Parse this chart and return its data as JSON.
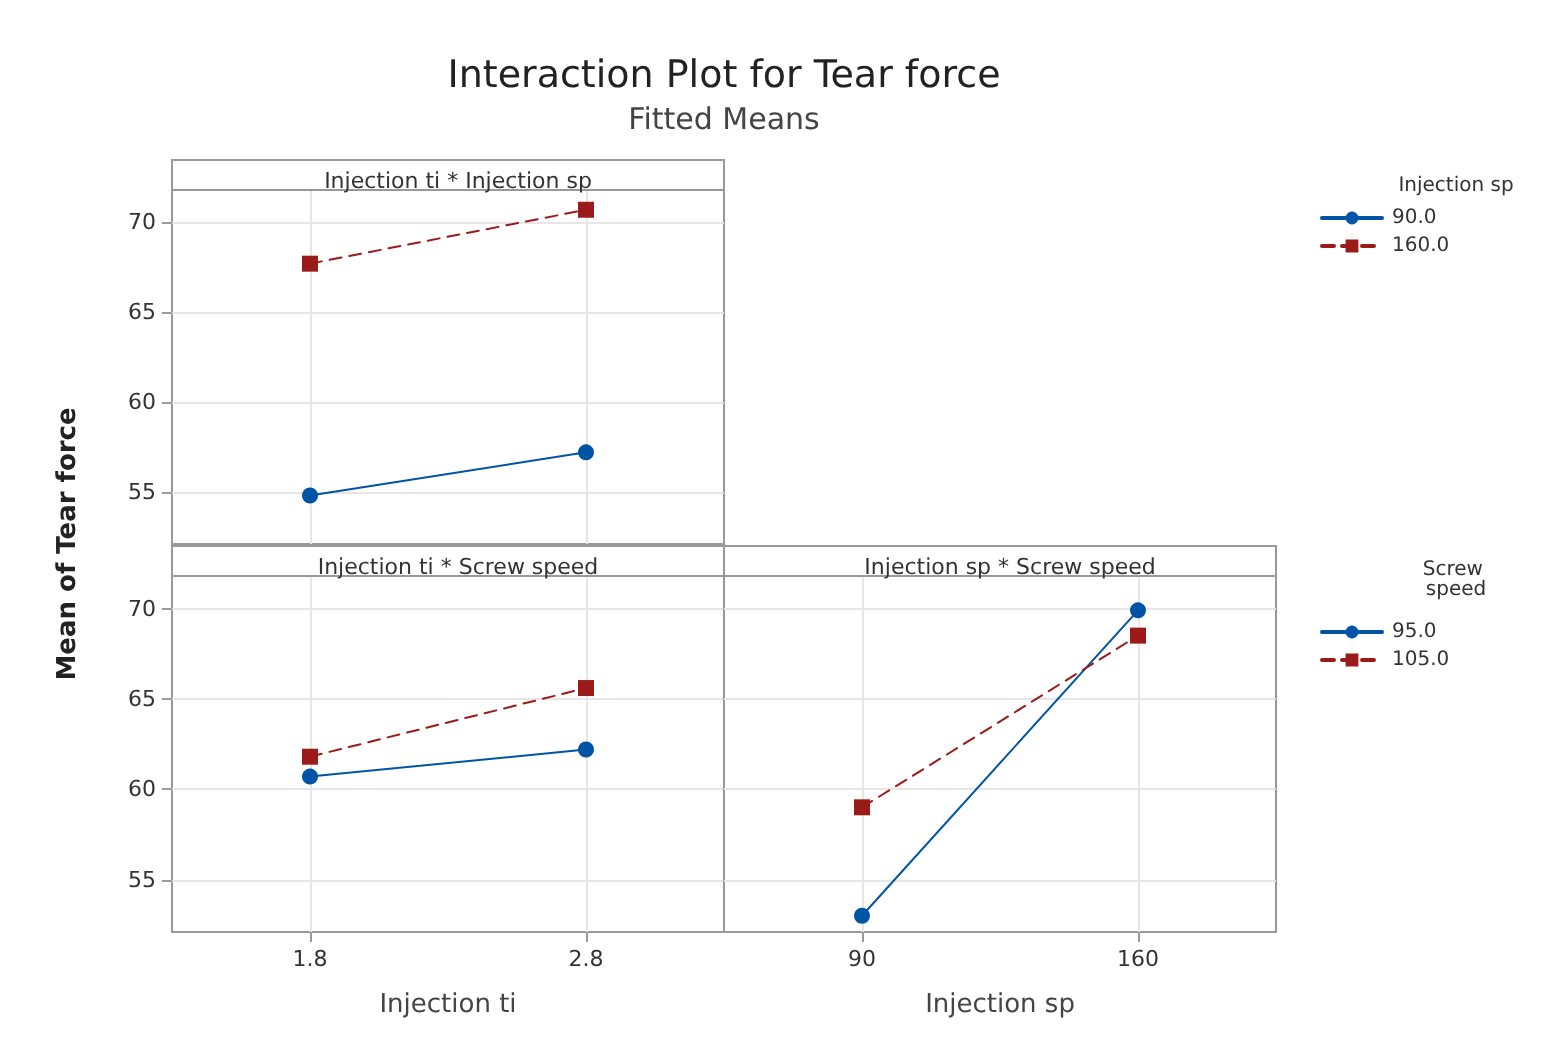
{
  "chart_data": [
    {
      "type": "line",
      "title": "Injection ti * Injection sp",
      "annotations": [
        "Interaction Plot for Tear force",
        "Fitted Means"
      ],
      "ylabel": "Mean of Tear force",
      "legend_title": "Injection sp",
      "legend": "right",
      "grid": true,
      "tick_labels": "y",
      "xlim": [
        1.3,
        3.3
      ],
      "xticks": [
        1.8,
        2.8
      ],
      "ylim": [
        52.1,
        71.8
      ],
      "yticks": [
        55,
        60,
        65,
        70
      ],
      "x": [
        1.8,
        2.8
      ],
      "series": [
        {
          "name": "90.0",
          "color": "#0054a6",
          "marker": "circle",
          "line_style": "solid",
          "values": [
            54.8,
            57.2
          ]
        },
        {
          "name": "160.0",
          "color": "#9b1b1b",
          "marker": "square",
          "line_style": "dashed",
          "values": [
            67.7,
            70.7
          ]
        }
      ]
    },
    {
      "type": "line",
      "title": "Injection ti * Screw speed",
      "xlabel": "Injection ti",
      "grid": true,
      "xlim": [
        1.3,
        3.3
      ],
      "xticks": [
        1.8,
        2.8
      ],
      "ylim": [
        52.1,
        71.8
      ],
      "yticks": [
        55,
        60,
        65,
        70
      ],
      "x": [
        1.8,
        2.8
      ],
      "series": [
        {
          "color": "#0054a6",
          "marker": "circle",
          "line_style": "solid",
          "values": [
            60.7,
            62.2
          ]
        },
        {
          "color": "#9b1b1b",
          "marker": "square",
          "line_style": "dashed",
          "values": [
            61.8,
            65.6
          ]
        }
      ]
    },
    {
      "type": "line",
      "title": "Injection sp * Screw speed",
      "xlabel": "Injection sp",
      "legend_title": "Screw speed",
      "legend": "right",
      "grid": true,
      "tick_labels": "x",
      "xlim": [
        55,
        195
      ],
      "xticks": [
        90,
        160
      ],
      "ylim": [
        52.1,
        71.8
      ],
      "yticks": [
        55,
        60,
        65,
        70
      ],
      "x": [
        90,
        160
      ],
      "series": [
        {
          "name": "95.0",
          "color": "#0054a6",
          "marker": "circle",
          "line_style": "solid",
          "values": [
            53.0,
            69.9
          ]
        },
        {
          "name": "105.0",
          "color": "#9b1b1b",
          "marker": "square",
          "line_style": "dashed",
          "values": [
            59.0,
            68.5
          ]
        }
      ]
    }
  ]
}
